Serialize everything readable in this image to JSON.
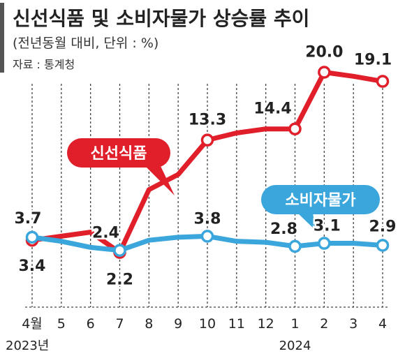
{
  "header": {
    "title": "신선식품 및 소비자물가 상승률 추이",
    "subtitle": "(전년동월 대비, 단위 : %)",
    "source": "자료 : 통계청"
  },
  "colors": {
    "fresh_food": "#e01f2a",
    "consumer_price": "#3aa6dc",
    "grid": "#444444",
    "accent_bar": "#555555"
  },
  "chart_data": {
    "type": "line",
    "title": "신선식품 및 소비자물가 상승률 추이",
    "subtitle": "(전년동월 대비, 단위 : %)",
    "source": "자료 : 통계청",
    "categories": [
      "4월",
      "5",
      "6",
      "7",
      "8",
      "9",
      "10",
      "11",
      "12",
      "1",
      "2",
      "3",
      "4"
    ],
    "year_labels": [
      {
        "label": "2023년",
        "category_index": 0
      },
      {
        "label": "2024",
        "category_index": 9
      }
    ],
    "ylim": [
      0,
      22
    ],
    "grid": "vertical dashed",
    "series": [
      {
        "name": "신선식품",
        "color": "#e01f2a",
        "values": [
          3.4,
          3.8,
          4.2,
          2.2,
          8.4,
          9.9,
          13.3,
          14.0,
          14.4,
          14.4,
          20.0,
          19.6,
          19.1
        ],
        "labeled": [
          {
            "index": 6,
            "text": "13.3"
          },
          {
            "index": 9,
            "text": "14.4"
          },
          {
            "index": 10,
            "text": "20.0"
          },
          {
            "index": 12,
            "text": "19.1"
          }
        ]
      },
      {
        "name": "소비자물가",
        "color": "#3aa6dc",
        "values": [
          3.7,
          3.3,
          2.7,
          2.4,
          3.4,
          3.7,
          3.8,
          3.3,
          3.2,
          2.8,
          3.1,
          3.1,
          2.9
        ],
        "labeled": [
          {
            "index": 0,
            "text": "3.7"
          },
          {
            "index": 3,
            "text": "2.4"
          },
          {
            "index": 6,
            "text": "3.8"
          },
          {
            "index": 9,
            "text": "2.8"
          },
          {
            "index": 10,
            "text": "3.1"
          },
          {
            "index": 12,
            "text": "2.9"
          }
        ]
      }
    ],
    "extra_labels": [
      {
        "series": 0,
        "index": 0,
        "text": "3.4"
      },
      {
        "series": 0,
        "index": 3,
        "text": "2.2"
      }
    ],
    "callouts": [
      {
        "series": 0,
        "text": "신선식품"
      },
      {
        "series": 1,
        "text": "소비자물가"
      }
    ]
  }
}
